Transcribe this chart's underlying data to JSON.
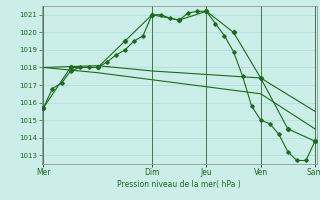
{
  "background_color": "#cceee8",
  "grid_color": "#aadddd",
  "line_color": "#1a6b1a",
  "xlabel": "Pression niveau de la mer( hPa )",
  "ylim": [
    1012.5,
    1021.5
  ],
  "yticks": [
    1013,
    1014,
    1015,
    1016,
    1017,
    1018,
    1019,
    1020,
    1021
  ],
  "day_labels": [
    "Mer",
    "Dim",
    "Jeu",
    "Ven",
    "Sam"
  ],
  "day_positions": [
    0,
    12,
    18,
    24,
    30
  ],
  "series1_x": [
    0,
    1,
    2,
    3,
    4,
    5,
    6,
    7,
    8,
    9,
    10,
    11,
    12,
    13,
    14,
    15,
    16,
    17,
    18,
    19,
    20,
    21,
    22,
    23,
    24,
    25,
    26,
    27,
    28,
    29,
    30
  ],
  "series1_y": [
    1015.7,
    1016.8,
    1017.1,
    1017.8,
    1018.0,
    1018.0,
    1018.0,
    1018.3,
    1018.7,
    1019.0,
    1019.5,
    1019.8,
    1021.0,
    1021.0,
    1020.8,
    1020.7,
    1021.1,
    1021.2,
    1021.2,
    1020.5,
    1019.8,
    1018.9,
    1017.5,
    1015.8,
    1015.0,
    1014.8,
    1014.2,
    1013.2,
    1012.7,
    1012.7,
    1013.8
  ],
  "series2_x": [
    0,
    3,
    6,
    9,
    12,
    15,
    18,
    21,
    24,
    27,
    30
  ],
  "series2_y": [
    1015.7,
    1018.0,
    1018.0,
    1019.5,
    1021.0,
    1020.7,
    1021.2,
    1020.0,
    1017.4,
    1014.5,
    1013.8
  ],
  "series3_x": [
    0,
    6,
    12,
    18,
    24,
    30
  ],
  "series3_y": [
    1018.0,
    1018.1,
    1017.8,
    1017.6,
    1017.4,
    1015.5
  ],
  "series4_x": [
    0,
    6,
    12,
    18,
    24,
    30
  ],
  "series4_y": [
    1018.0,
    1017.7,
    1017.3,
    1016.9,
    1016.5,
    1014.5
  ],
  "vline_positions": [
    0,
    12,
    18,
    24,
    30
  ],
  "figsize": [
    3.2,
    2.0
  ],
  "dpi": 100
}
